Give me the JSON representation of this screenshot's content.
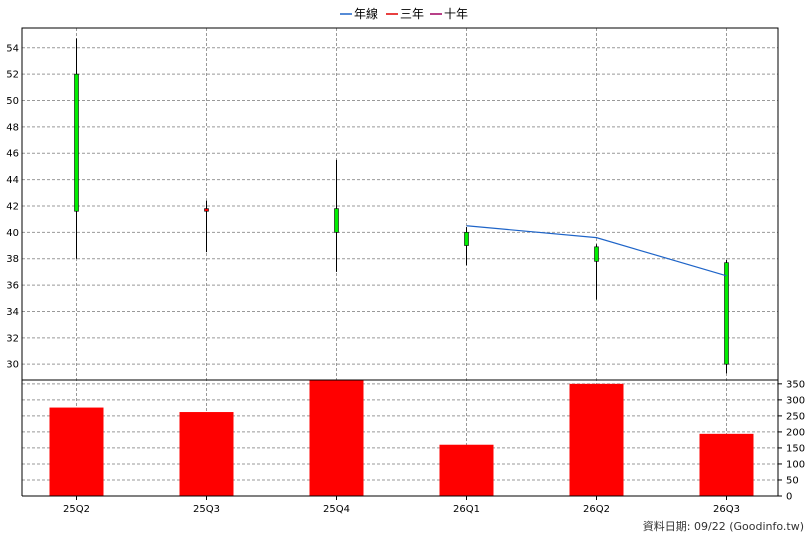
{
  "legend": [
    {
      "label": "年線",
      "color": "#1e64c8"
    },
    {
      "label": "三年",
      "color": "#e00000"
    },
    {
      "label": "十年",
      "color": "#a00060"
    }
  ],
  "source_note": "資料日期: 09/22  (Goodinfo.tw)",
  "chart_data": [
    {
      "type": "candlestick",
      "categories": [
        "25Q2",
        "25Q3",
        "25Q4",
        "26Q1",
        "26Q2",
        "26Q3"
      ],
      "y_ticks": [
        30,
        32,
        34,
        36,
        38,
        40,
        42,
        44,
        46,
        48,
        50,
        52,
        54
      ],
      "ylim": [
        28.8,
        55.5
      ],
      "up_color": "#00ee00",
      "down_color": "#ff0000",
      "candles": [
        {
          "open": 41.6,
          "close": 52.0,
          "high": 54.7,
          "low": 38.0
        },
        {
          "open": 41.8,
          "close": 41.6,
          "high": 42.4,
          "low": 38.5
        },
        {
          "open": 40.0,
          "close": 41.8,
          "high": 45.5,
          "low": 37.0
        },
        {
          "open": 39.0,
          "close": 40.0,
          "high": 40.4,
          "low": 37.5
        },
        {
          "open": 37.8,
          "close": 38.9,
          "high": 39.1,
          "low": 34.9
        },
        {
          "open": 30.0,
          "close": 37.7,
          "high": 37.9,
          "low": 29.3
        }
      ],
      "series": [
        {
          "name": "年線",
          "color": "#1e64c8",
          "values": [
            null,
            null,
            null,
            40.5,
            39.6,
            36.7
          ]
        }
      ],
      "grid": true
    },
    {
      "type": "bar",
      "categories": [
        "25Q2",
        "25Q3",
        "25Q4",
        "26Q1",
        "26Q2",
        "26Q3"
      ],
      "values": [
        276,
        262,
        362,
        160,
        350,
        194
      ],
      "y_ticks": [
        0,
        50,
        100,
        150,
        200,
        250,
        300,
        350
      ],
      "ylim": [
        0,
        362
      ],
      "color": "#ff0000",
      "grid": true
    }
  ]
}
